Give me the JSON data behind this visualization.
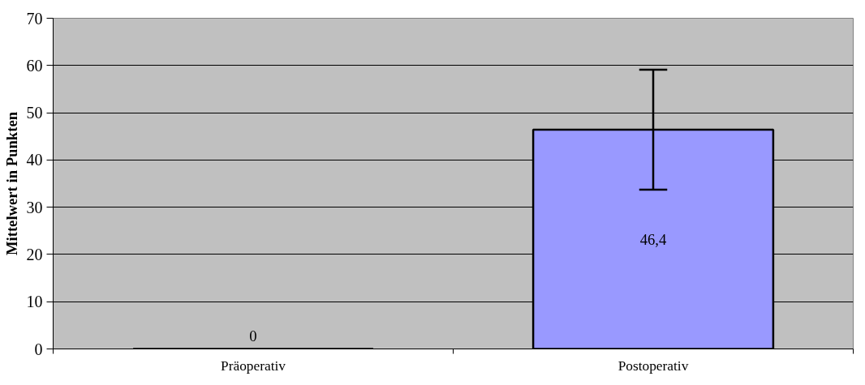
{
  "chart_data": {
    "type": "bar",
    "ylabel": "Mittelwert in Punkten",
    "categories": [
      "Präoperativ",
      "Postoperativ"
    ],
    "values": [
      0,
      46.4
    ],
    "color": "#9999ff",
    "errors": [
      null,
      12.7
    ],
    "value_labels": [
      "0",
      "46,4"
    ],
    "ylim": [
      0,
      70
    ],
    "yticks": [
      0,
      10,
      20,
      30,
      40,
      50,
      60,
      70
    ],
    "grid": "y"
  }
}
